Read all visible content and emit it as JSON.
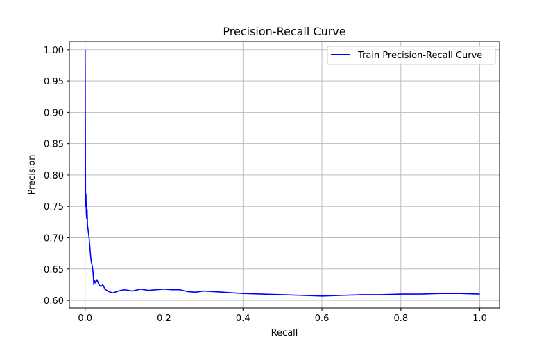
{
  "chart_data": {
    "type": "line",
    "title": "Precision-Recall Curve",
    "xlabel": "Recall",
    "ylabel": "Precision",
    "xlim": [
      -0.04,
      1.05
    ],
    "ylim": [
      0.588,
      1.013
    ],
    "x_ticks": [
      0.0,
      0.2,
      0.4,
      0.6,
      0.8,
      1.0
    ],
    "x_tick_labels": [
      "0.0",
      "0.2",
      "0.4",
      "0.6",
      "0.8",
      "1.0"
    ],
    "y_ticks": [
      0.6,
      0.65,
      0.7,
      0.75,
      0.8,
      0.85,
      0.9,
      0.95,
      1.0
    ],
    "y_tick_labels": [
      "0.60",
      "0.65",
      "0.70",
      "0.75",
      "0.80",
      "0.85",
      "0.90",
      "0.95",
      "1.00"
    ],
    "grid": true,
    "legend_position": "upper right",
    "series": [
      {
        "name": "Train Precision-Recall Curve",
        "color": "#0000ff",
        "x": [
          0.0,
          0.0005,
          0.001,
          0.0015,
          0.002,
          0.003,
          0.004,
          0.005,
          0.006,
          0.008,
          0.01,
          0.012,
          0.014,
          0.016,
          0.018,
          0.02,
          0.022,
          0.024,
          0.026,
          0.028,
          0.03,
          0.035,
          0.04,
          0.045,
          0.05,
          0.06,
          0.07,
          0.08,
          0.09,
          0.1,
          0.12,
          0.14,
          0.16,
          0.18,
          0.2,
          0.22,
          0.24,
          0.26,
          0.28,
          0.3,
          0.35,
          0.4,
          0.45,
          0.5,
          0.55,
          0.6,
          0.65,
          0.7,
          0.75,
          0.8,
          0.85,
          0.9,
          0.95,
          1.0
        ],
        "y": [
          1.0,
          0.88,
          0.76,
          0.75,
          0.77,
          0.74,
          0.73,
          0.745,
          0.72,
          0.71,
          0.7,
          0.685,
          0.67,
          0.66,
          0.655,
          0.645,
          0.625,
          0.632,
          0.628,
          0.63,
          0.633,
          0.625,
          0.622,
          0.625,
          0.618,
          0.614,
          0.612,
          0.614,
          0.616,
          0.617,
          0.615,
          0.618,
          0.616,
          0.617,
          0.618,
          0.617,
          0.617,
          0.614,
          0.613,
          0.615,
          0.613,
          0.611,
          0.61,
          0.609,
          0.608,
          0.607,
          0.608,
          0.609,
          0.609,
          0.61,
          0.61,
          0.611,
          0.611,
          0.61
        ]
      }
    ]
  }
}
